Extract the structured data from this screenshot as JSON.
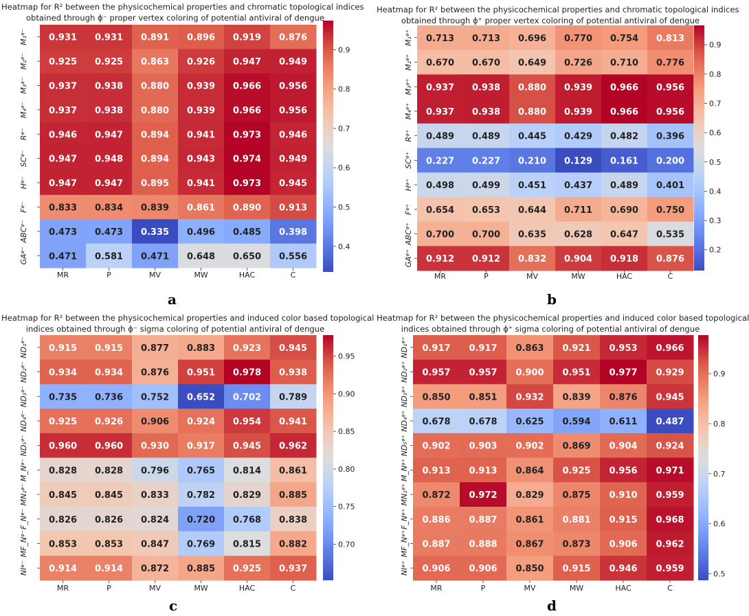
{
  "chart_data": [
    {
      "type": "heatmap",
      "panel_label": "a",
      "title_lines": [
        "Heatmap for R² between the physicochemical properties and chromatic topological indices",
        "obtained through ϕ⁻ proper vertex coloring of potential antiviral of dengue"
      ],
      "columns": [
        "MR",
        "P",
        "MV",
        "MW",
        "HAC",
        "C"
      ],
      "rows": [
        "M₁ᵠ⁻",
        "M₂ᵠ⁻",
        "M₃ᵠ⁻",
        "M₄ᵠ⁻",
        "Rᵠ⁻",
        "SCᵠ⁻",
        "Hᵠ⁻",
        "Fᵠ⁻",
        "ABCᵠ⁻",
        "GAᵠ⁻"
      ],
      "values": [
        [
          0.931,
          0.931,
          0.891,
          0.896,
          0.919,
          0.876
        ],
        [
          0.925,
          0.925,
          0.863,
          0.926,
          0.947,
          0.949
        ],
        [
          0.937,
          0.938,
          0.88,
          0.939,
          0.966,
          0.956
        ],
        [
          0.937,
          0.938,
          0.88,
          0.939,
          0.966,
          0.956
        ],
        [
          0.946,
          0.947,
          0.894,
          0.941,
          0.973,
          0.946
        ],
        [
          0.947,
          0.948,
          0.894,
          0.943,
          0.974,
          0.949
        ],
        [
          0.947,
          0.947,
          0.895,
          0.941,
          0.973,
          0.945
        ],
        [
          0.833,
          0.834,
          0.839,
          0.861,
          0.89,
          0.913
        ],
        [
          0.473,
          0.473,
          0.335,
          0.496,
          0.485,
          0.398
        ],
        [
          0.471,
          0.581,
          0.471,
          0.648,
          0.65,
          0.556
        ]
      ],
      "colorbar": {
        "ticks": [
          "0.4",
          "0.5",
          "0.6",
          "0.7",
          "0.8",
          "0.9"
        ]
      },
      "colormap": "coolwarm"
    },
    {
      "type": "heatmap",
      "panel_label": "b",
      "title_lines": [
        "Heatmap for R² between the physicochemical properties and chromatic topological indices",
        "obtained through ϕ⁺ proper vertex coloring of potential antiviral of dengue"
      ],
      "columns": [
        "MR",
        "P",
        "MV",
        "MW",
        "HAC",
        "C"
      ],
      "rows": [
        "M₁ᵠ⁺",
        "M₂ᵠ⁺",
        "M₃ᵠ⁺",
        "M₄ᵠ⁺",
        "Rᵠ⁺",
        "SCᵠ⁺",
        "Hᵠ⁺",
        "Fᵠ⁺",
        "ABCᵠ⁺",
        "GAᵠ⁺"
      ],
      "values": [
        [
          0.713,
          0.713,
          0.696,
          0.77,
          0.754,
          0.813
        ],
        [
          0.67,
          0.67,
          0.649,
          0.726,
          0.71,
          0.776
        ],
        [
          0.937,
          0.938,
          0.88,
          0.939,
          0.966,
          0.956
        ],
        [
          0.937,
          0.938,
          0.88,
          0.939,
          0.966,
          0.956
        ],
        [
          0.489,
          0.489,
          0.445,
          0.429,
          0.482,
          0.396
        ],
        [
          0.227,
          0.227,
          0.21,
          0.129,
          0.161,
          0.2
        ],
        [
          0.498,
          0.499,
          0.451,
          0.437,
          0.489,
          0.401
        ],
        [
          0.654,
          0.653,
          0.644,
          0.711,
          0.69,
          0.75
        ],
        [
          0.7,
          0.7,
          0.635,
          0.628,
          0.647,
          0.535
        ],
        [
          0.912,
          0.912,
          0.832,
          0.904,
          0.918,
          0.876
        ]
      ],
      "colorbar": {
        "ticks": [
          "0.2",
          "0.3",
          "0.4",
          "0.5",
          "0.6",
          "0.7",
          "0.8",
          "0.9"
        ]
      },
      "colormap": "coolwarm"
    },
    {
      "type": "heatmap",
      "panel_label": "c",
      "title_lines": [
        "Heatmap for R² between the physicochemical properties and induced color based topological",
        "indices obtained through ϕ⁻ sigma coloring of potential antiviral of dengue"
      ],
      "columns": [
        "MR",
        "P",
        "MV",
        "MW",
        "HAC",
        "C"
      ],
      "rows": [
        "ND₁ᵠ⁻",
        "ND₂ᵠ⁻",
        "ND₃ᵠ⁻",
        "ND₄ᵠ⁻",
        "ND₅ᵠ⁻",
        "M_Nᵠ⁻",
        "MN₂ᵠ⁻",
        "F_Nᵠ⁻",
        "MF_Nᵠ⁻",
        "NIᵠ⁻"
      ],
      "values": [
        [
          0.915,
          0.915,
          0.877,
          0.883,
          0.923,
          0.945
        ],
        [
          0.934,
          0.934,
          0.876,
          0.951,
          0.978,
          0.938
        ],
        [
          0.735,
          0.736,
          0.752,
          0.652,
          0.702,
          0.789
        ],
        [
          0.925,
          0.926,
          0.906,
          0.924,
          0.954,
          0.941
        ],
        [
          0.96,
          0.96,
          0.93,
          0.917,
          0.945,
          0.962
        ],
        [
          0.828,
          0.828,
          0.796,
          0.765,
          0.814,
          0.861
        ],
        [
          0.845,
          0.845,
          0.833,
          0.782,
          0.829,
          0.885
        ],
        [
          0.826,
          0.826,
          0.824,
          0.72,
          0.768,
          0.838
        ],
        [
          0.853,
          0.853,
          0.847,
          0.769,
          0.815,
          0.882
        ],
        [
          0.914,
          0.914,
          0.872,
          0.885,
          0.925,
          0.937
        ]
      ],
      "colorbar": {
        "ticks": [
          "0.70",
          "0.75",
          "0.80",
          "0.85",
          "0.90",
          "0.95"
        ]
      },
      "colormap": "coolwarm"
    },
    {
      "type": "heatmap",
      "panel_label": "d",
      "title_lines": [
        "Heatmap for R² between the physicochemical properties and induced color based topological",
        "indices obtained through ϕ⁺ sigma coloring of potential antiviral of dengue"
      ],
      "columns": [
        "MR",
        "P",
        "MV",
        "MW",
        "HAC",
        "C"
      ],
      "rows": [
        "ND₁ᵠ⁺",
        "ND₂ᵠ⁺",
        "ND₃ᵠ⁺",
        "ND₄ᵠ⁺",
        "ND₅ᵠ⁺",
        "M_Nᵠ⁺",
        "MN₂ᵠ⁺",
        "F_Nᵠ⁺",
        "MF_Nᵠ⁺",
        "NIᵠ⁺"
      ],
      "values": [
        [
          0.917,
          0.917,
          0.863,
          0.921,
          0.953,
          0.966
        ],
        [
          0.957,
          0.957,
          0.9,
          0.951,
          0.977,
          0.929
        ],
        [
          0.85,
          0.851,
          0.932,
          0.839,
          0.876,
          0.945
        ],
        [
          0.678,
          0.678,
          0.625,
          0.594,
          0.611,
          0.487
        ],
        [
          0.902,
          0.903,
          0.902,
          0.869,
          0.904,
          0.924
        ],
        [
          0.913,
          0.913,
          0.864,
          0.925,
          0.956,
          0.971
        ],
        [
          0.872,
          0.972,
          0.829,
          0.875,
          0.91,
          0.959
        ],
        [
          0.886,
          0.887,
          0.861,
          0.881,
          0.915,
          0.968
        ],
        [
          0.887,
          0.888,
          0.867,
          0.873,
          0.906,
          0.962
        ],
        [
          0.906,
          0.906,
          0.85,
          0.915,
          0.946,
          0.959
        ]
      ],
      "colorbar": {
        "ticks": [
          "0.5",
          "0.6",
          "0.7",
          "0.8",
          "0.9"
        ]
      },
      "colormap": "coolwarm"
    }
  ]
}
